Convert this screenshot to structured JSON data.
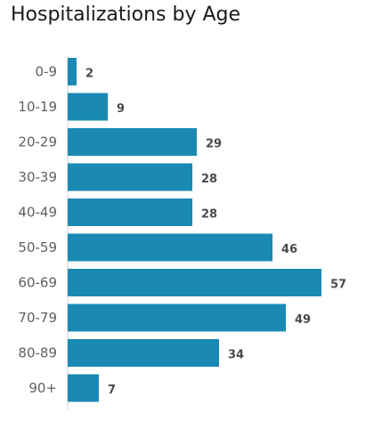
{
  "chart_data": {
    "type": "bar",
    "orientation": "horizontal",
    "title": "Hospitalizations by Age",
    "categories": [
      "0-9",
      "10-19",
      "20-29",
      "30-39",
      "40-49",
      "50-59",
      "60-69",
      "70-79",
      "80-89",
      "90+"
    ],
    "values": [
      2,
      9,
      29,
      28,
      28,
      46,
      57,
      49,
      34,
      7
    ],
    "xlabel": "",
    "ylabel": "",
    "xlim": [
      0,
      57
    ],
    "grid": false,
    "legend": "none",
    "bar_color": "#1a8ab4"
  }
}
